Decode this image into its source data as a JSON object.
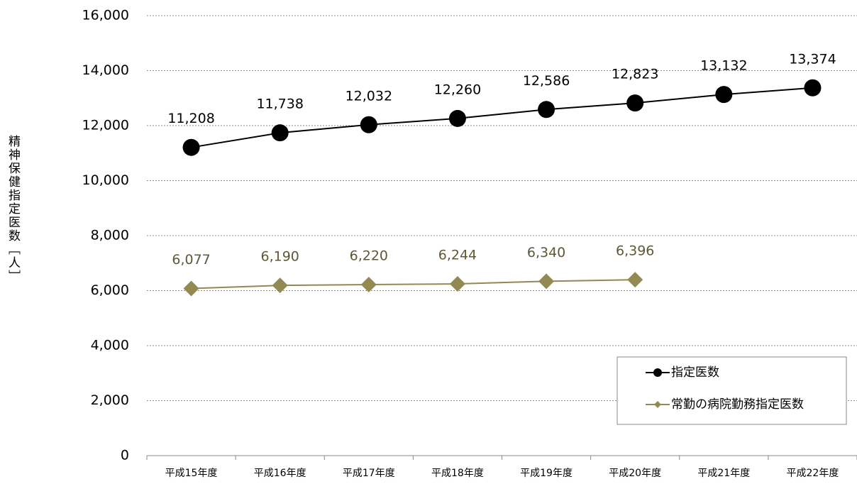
{
  "chart_data": {
    "type": "line",
    "y_axis_label": "精神保健指定医数［人］",
    "categories": [
      "平成15年度",
      "平成16年度",
      "平成17年度",
      "平成18年度",
      "平成19年度",
      "平成20年度",
      "平成21年度",
      "平成22年度"
    ],
    "series": [
      {
        "name": "指定医数",
        "color": "#000000",
        "marker": "circle",
        "values": [
          11208,
          11738,
          12032,
          12260,
          12586,
          12823,
          13132,
          13374
        ],
        "value_labels": [
          "11,208",
          "11,738",
          "12,032",
          "12,260",
          "12,586",
          "12,823",
          "13,132",
          "13,374"
        ]
      },
      {
        "name": "常勤の病院勤務指定医数",
        "color": "#938953",
        "marker": "diamond",
        "values": [
          6077,
          6190,
          6220,
          6244,
          6340,
          6396,
          null,
          null
        ],
        "value_labels": [
          "6,077",
          "6,190",
          "6,220",
          "6,244",
          "6,340",
          "6,396",
          null,
          null
        ]
      }
    ],
    "ylim": [
      0,
      16000
    ],
    "yticks": [
      0,
      {
        "value": 2000,
        "label": "2,000"
      },
      {
        "value": 4000,
        "label": "4,000"
      },
      {
        "value": 6000,
        "label": "6,000"
      },
      {
        "value": 8000,
        "label": "8,000"
      },
      {
        "value": 10000,
        "label": "10,000"
      },
      {
        "value": 12000,
        "label": "12,000"
      },
      {
        "value": 14000,
        "label": "14,000"
      },
      {
        "value": 16000,
        "label": "16,000"
      }
    ],
    "grid": true,
    "legend": "lower right"
  }
}
